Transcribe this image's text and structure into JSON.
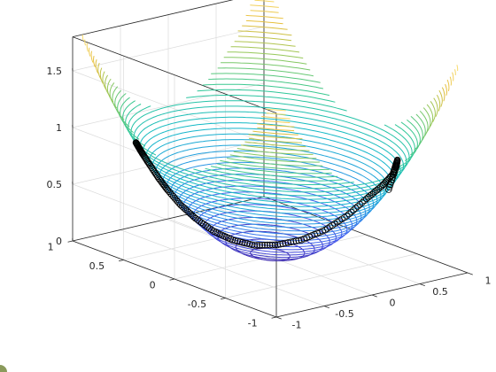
{
  "chart_data": {
    "type": "scatter",
    "view": "3d",
    "title": "",
    "xlabel": "",
    "ylabel": "",
    "zlabel": "",
    "xlim": [
      -1,
      1
    ],
    "ylim": [
      -1,
      1
    ],
    "zlim": [
      0,
      1.8
    ],
    "xticks": [
      "-1",
      "-0.5",
      "0",
      "0.5",
      "1"
    ],
    "yticks": [
      "-1",
      "-0.5",
      "0",
      "0.5",
      "1"
    ],
    "zticks": [
      "0",
      "0.5",
      "1",
      "1.5"
    ],
    "grid": true,
    "surface": {
      "kind": "contour3",
      "function": "z = x^2 + y^2",
      "levels_min": 0.02,
      "levels_max": 1.8,
      "level_count": 45,
      "colormap": "parula"
    },
    "trajectory": {
      "marker": "o",
      "marker_color": "#000000",
      "x": [
        0.44,
        0.4,
        0.34,
        0.26,
        0.17,
        0.06,
        -0.05,
        -0.16,
        -0.27,
        -0.37,
        -0.45,
        -0.52,
        -0.57,
        -0.62,
        -0.66,
        -0.7,
        -0.73,
        -0.77,
        -0.81,
        -0.84,
        -0.87
      ],
      "y": [
        -0.75,
        -0.86,
        -0.93,
        -0.96,
        -0.94,
        -0.89,
        -0.8,
        -0.69,
        -0.56,
        -0.42,
        -0.27,
        -0.12,
        0.02,
        0.15,
        0.26,
        0.35,
        0.41,
        0.46,
        0.49,
        0.5,
        0.5
      ],
      "z": [
        0.76,
        1.0,
        1.1,
        1.0,
        0.91,
        0.8,
        0.64,
        0.5,
        0.39,
        0.32,
        0.28,
        0.29,
        0.33,
        0.41,
        0.5,
        0.61,
        0.7,
        0.81,
        0.9,
        0.96,
        1.01
      ]
    }
  }
}
